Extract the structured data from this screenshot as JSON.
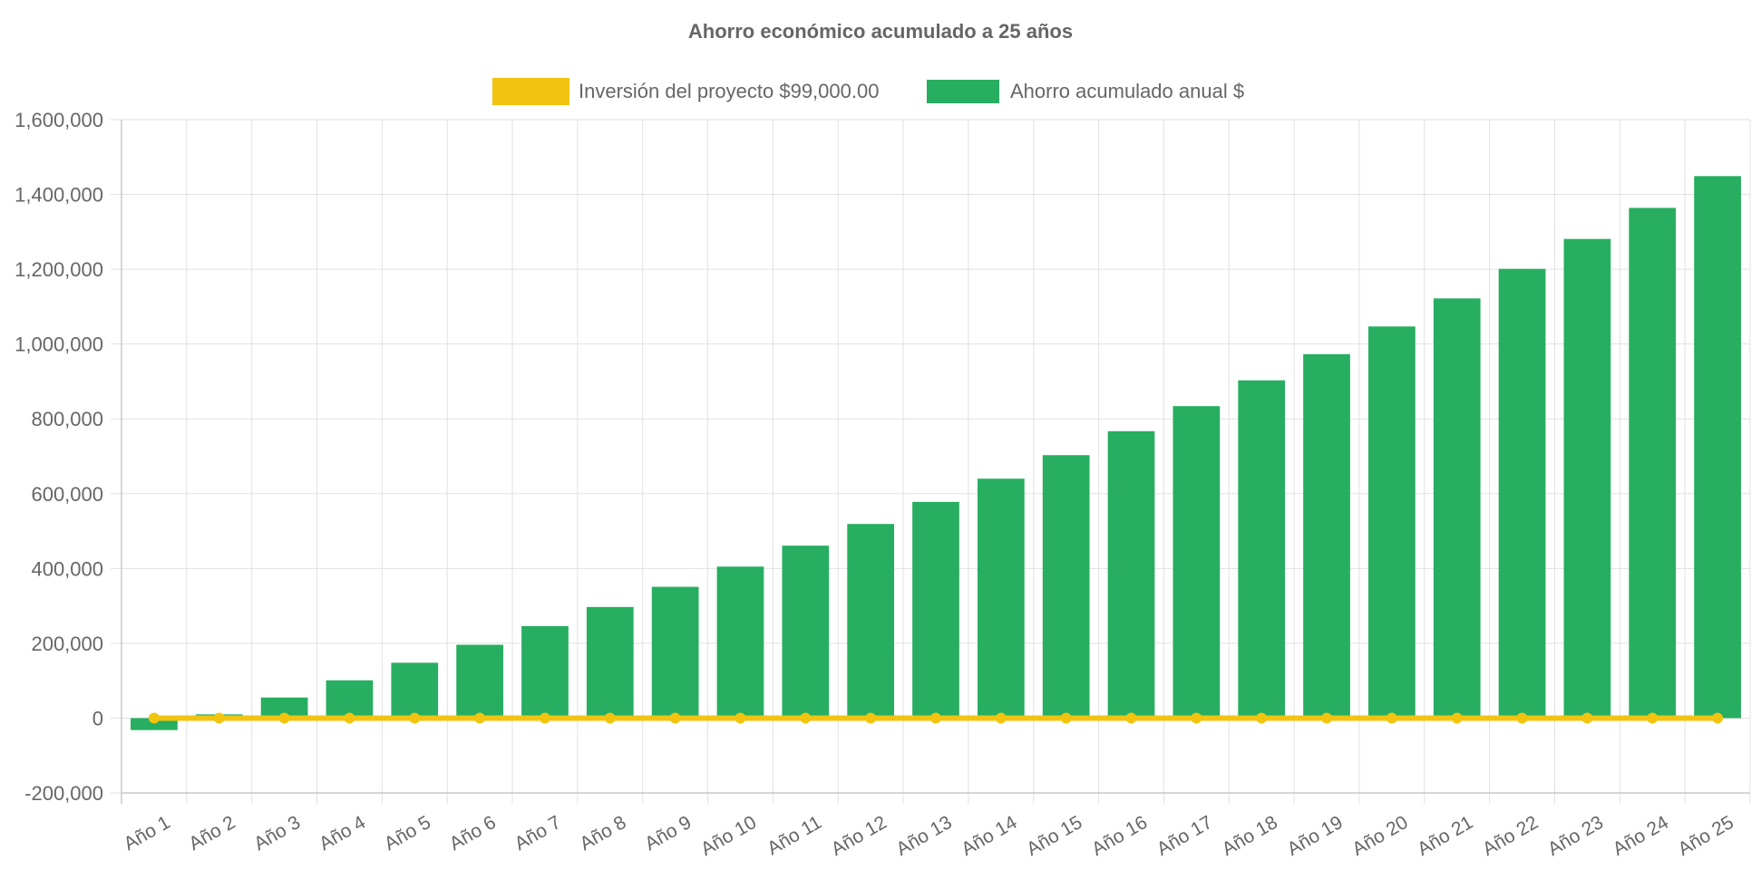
{
  "chart_data": {
    "type": "bar",
    "title": "Ahorro económico acumulado a 25 años",
    "xlabel": "",
    "ylabel": "",
    "ylim": [
      -200000,
      1600000
    ],
    "yticks": [
      -200000,
      0,
      200000,
      400000,
      600000,
      800000,
      1000000,
      1200000,
      1400000,
      1600000
    ],
    "ytick_labels": [
      "-200,000",
      "0",
      "200,000",
      "400,000",
      "600,000",
      "800,000",
      "1,000,000",
      "1,200,000",
      "1,400,000",
      "1,600,000"
    ],
    "grid": true,
    "legend_position": "top",
    "categories": [
      "Año 1",
      "Año 2",
      "Año 3",
      "Año 4",
      "Año 5",
      "Año 6",
      "Año 7",
      "Año 8",
      "Año 9",
      "Año 10",
      "Año 11",
      "Año 12",
      "Año 13",
      "Año 14",
      "Año 15",
      "Año 16",
      "Año 17",
      "Año 18",
      "Año 19",
      "Año 20",
      "Año 21",
      "Año 22",
      "Año 23",
      "Año 24",
      "Año 25"
    ],
    "series": [
      {
        "name": "Inversión del proyecto $99,000.00",
        "type": "line",
        "color": "#f2c40f",
        "values": [
          0,
          0,
          0,
          0,
          0,
          0,
          0,
          0,
          0,
          0,
          0,
          0,
          0,
          0,
          0,
          0,
          0,
          0,
          0,
          0,
          0,
          0,
          0,
          0,
          0
        ]
      },
      {
        "name": "Ahorro acumulado anual $",
        "type": "bar",
        "color": "#27ae60",
        "values": [
          -32000,
          10000,
          55000,
          101000,
          148000,
          196000,
          246000,
          297000,
          351000,
          405000,
          461000,
          519000,
          578000,
          640000,
          703000,
          767000,
          834000,
          903000,
          973000,
          1047000,
          1122000,
          1201000,
          1281000,
          1364000,
          1449000
        ]
      }
    ]
  }
}
